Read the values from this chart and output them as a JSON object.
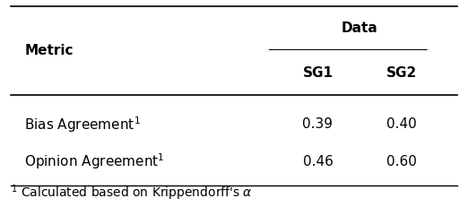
{
  "title": "Data",
  "col_header_top": "Data",
  "col_header_sub": [
    "SG1",
    "SG2"
  ],
  "row_header": "Metric",
  "rows": [
    {
      "label": "Bias Agreement$^1$",
      "sg1": "0.39",
      "sg2": "0.40"
    },
    {
      "label": "Opinion Agreement$^1$",
      "sg1": "0.46",
      "sg2": "0.60"
    }
  ],
  "footnote": "$^1$ Calculated based on Krippendorff's $\\alpha$",
  "background_color": "#ffffff",
  "text_color": "#000000",
  "font_size": 11,
  "header_font_size": 11
}
